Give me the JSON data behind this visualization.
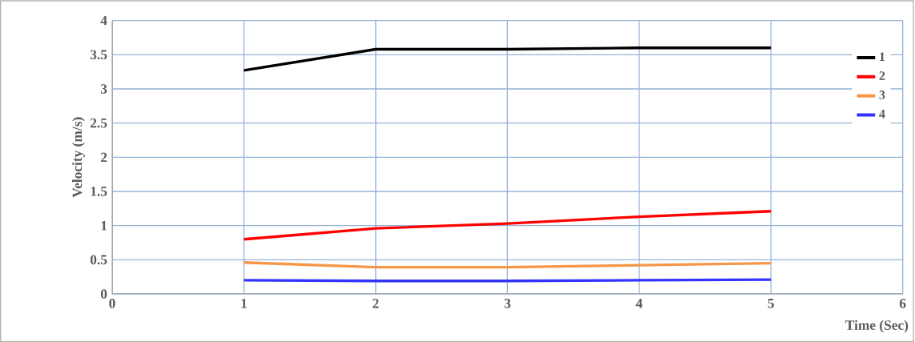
{
  "chart_data": {
    "type": "line",
    "xlabel": "Time (Sec)",
    "ylabel": "Velocity (m/s)",
    "x": [
      1,
      2,
      3,
      4,
      5
    ],
    "series": [
      {
        "name": "1",
        "color": "#000000",
        "values": [
          3.27,
          3.58,
          3.58,
          3.6,
          3.6
        ]
      },
      {
        "name": "2",
        "color": "#ff0000",
        "values": [
          0.8,
          0.96,
          1.03,
          1.13,
          1.21
        ]
      },
      {
        "name": "3",
        "color": "#f79646",
        "values": [
          0.46,
          0.39,
          0.39,
          0.42,
          0.45
        ]
      },
      {
        "name": "4",
        "color": "#3333ff",
        "values": [
          0.2,
          0.19,
          0.19,
          0.2,
          0.21
        ]
      }
    ],
    "xlim": [
      0,
      6
    ],
    "xticks": [
      0,
      1,
      2,
      3,
      4,
      5,
      6
    ],
    "ylim": [
      0,
      4
    ],
    "yticks": [
      0,
      0.5,
      1,
      1.5,
      2,
      2.5,
      3,
      3.5,
      4
    ],
    "grid": true,
    "legend": "right",
    "marker": "none",
    "line_style": "solid"
  }
}
